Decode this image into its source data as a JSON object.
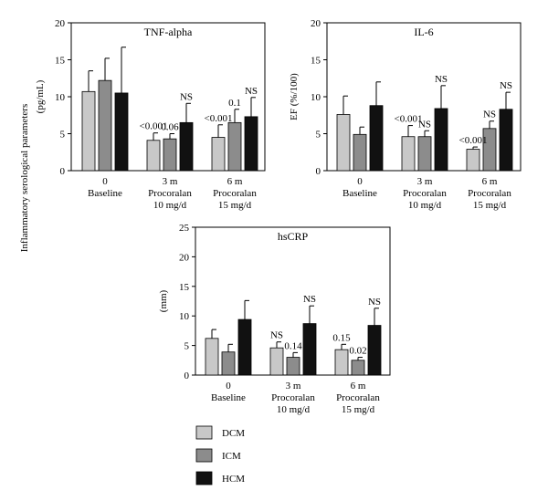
{
  "figure": {
    "shared_ylabel": "Inflammatory serological parameters"
  },
  "chart_data": [
    {
      "type": "bar",
      "title": "TNF-alpha",
      "ylabel": "(pg/mL)",
      "ylim": [
        0,
        20
      ],
      "yticks": [
        0,
        5,
        10,
        15,
        20
      ],
      "categories": [
        [
          "0",
          "Baseline"
        ],
        [
          "3 m",
          "Procoralan",
          "10 mg/d"
        ],
        [
          "6 m",
          "Procoralan",
          "15 mg/d"
        ]
      ],
      "series": [
        {
          "name": "DCM",
          "color": "#c8c8c8",
          "values": [
            10.7,
            4.1,
            4.5
          ],
          "errors": [
            2.8,
            1.0,
            1.7
          ]
        },
        {
          "name": "ICM",
          "color": "#8c8c8c",
          "values": [
            12.2,
            4.3,
            6.5
          ],
          "errors": [
            3.0,
            0.7,
            1.8
          ]
        },
        {
          "name": "HCM",
          "color": "#111111",
          "values": [
            10.5,
            6.5,
            7.3
          ],
          "errors": [
            6.2,
            2.6,
            2.6
          ]
        }
      ],
      "annotations": [
        {
          "category": 1,
          "series": 0,
          "text": "<0.001"
        },
        {
          "category": 1,
          "series": 1,
          "text": "0.06"
        },
        {
          "category": 1,
          "series": 2,
          "text": "NS"
        },
        {
          "category": 2,
          "series": 0,
          "text": "<0.001"
        },
        {
          "category": 2,
          "series": 1,
          "text": "0.1"
        },
        {
          "category": 2,
          "series": 2,
          "text": "NS"
        }
      ]
    },
    {
      "type": "bar",
      "title": "IL-6",
      "ylabel": "EF (%/100)",
      "ylim": [
        0,
        20
      ],
      "yticks": [
        0,
        5,
        10,
        15,
        20
      ],
      "categories": [
        [
          "0",
          "Baseline"
        ],
        [
          "3 m",
          "Procoralan",
          "10 mg/d"
        ],
        [
          "6 m",
          "Procoralan",
          "15 mg/d"
        ]
      ],
      "series": [
        {
          "name": "DCM",
          "color": "#c8c8c8",
          "values": [
            7.6,
            4.6,
            2.9
          ],
          "errors": [
            2.5,
            1.5,
            0.3
          ]
        },
        {
          "name": "ICM",
          "color": "#8c8c8c",
          "values": [
            4.9,
            4.6,
            5.7
          ],
          "errors": [
            1.0,
            0.8,
            1.0
          ]
        },
        {
          "name": "HCM",
          "color": "#111111",
          "values": [
            8.8,
            8.4,
            8.3
          ],
          "errors": [
            3.2,
            3.1,
            2.3
          ]
        }
      ],
      "annotations": [
        {
          "category": 1,
          "series": 0,
          "text": "<0.001"
        },
        {
          "category": 1,
          "series": 1,
          "text": "NS"
        },
        {
          "category": 1,
          "series": 2,
          "text": "NS"
        },
        {
          "category": 2,
          "series": 0,
          "text": "<0.001"
        },
        {
          "category": 2,
          "series": 1,
          "text": "NS"
        },
        {
          "category": 2,
          "series": 2,
          "text": "NS"
        }
      ]
    },
    {
      "type": "bar",
      "title": "hsCRP",
      "ylabel": "(mm)",
      "ylim": [
        0,
        25
      ],
      "yticks": [
        0,
        5,
        10,
        15,
        20,
        25
      ],
      "categories": [
        [
          "0",
          "Baseline"
        ],
        [
          "3 m",
          "Procoralan",
          "10 mg/d"
        ],
        [
          "6 m",
          "Procoralan",
          "15 mg/d"
        ]
      ],
      "series": [
        {
          "name": "DCM",
          "color": "#c8c8c8",
          "values": [
            6.2,
            4.6,
            4.3
          ],
          "errors": [
            1.5,
            1.0,
            0.9
          ]
        },
        {
          "name": "ICM",
          "color": "#8c8c8c",
          "values": [
            3.9,
            3.0,
            2.5
          ],
          "errors": [
            1.3,
            0.8,
            0.5
          ]
        },
        {
          "name": "HCM",
          "color": "#111111",
          "values": [
            9.4,
            8.7,
            8.4
          ],
          "errors": [
            3.2,
            3.0,
            2.9
          ]
        }
      ],
      "annotations": [
        {
          "category": 1,
          "series": 0,
          "text": "NS"
        },
        {
          "category": 1,
          "series": 1,
          "text": "0.14"
        },
        {
          "category": 1,
          "series": 2,
          "text": "NS"
        },
        {
          "category": 2,
          "series": 0,
          "text": "0.15"
        },
        {
          "category": 2,
          "series": 1,
          "text": "0.02"
        },
        {
          "category": 2,
          "series": 2,
          "text": "NS"
        }
      ]
    }
  ],
  "legend": [
    {
      "label": "DCM",
      "color": "#c8c8c8"
    },
    {
      "label": "ICM",
      "color": "#8c8c8c"
    },
    {
      "label": "HCM",
      "color": "#111111"
    }
  ]
}
